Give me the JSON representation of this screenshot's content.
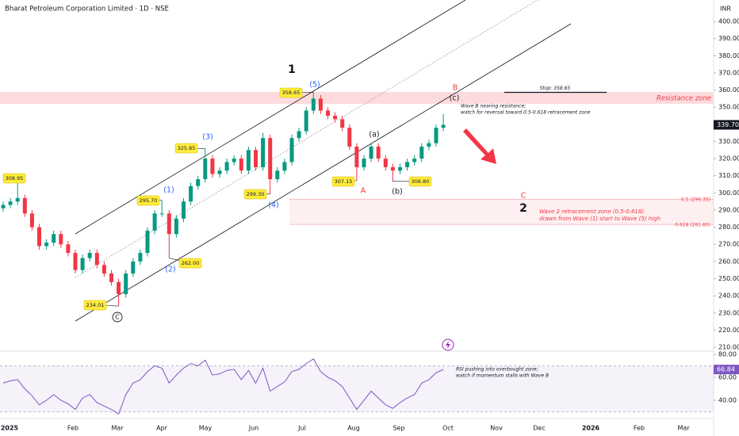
{
  "chart_data": [
    {
      "type": "candlestick",
      "title": "Bharat Petroleum Corporation Limited · 1D · NSE",
      "y_axis_label": "INR",
      "xticks": [
        "2025",
        "Feb",
        "Mar",
        "Apr",
        "May",
        "Jun",
        "Jul",
        "Aug",
        "Sep",
        "Oct",
        "Nov",
        "Dec",
        "2026",
        "Feb",
        "Mar"
      ],
      "open": [
        291,
        293,
        295,
        297,
        288,
        280,
        269,
        271,
        276,
        270,
        265,
        255,
        262,
        265,
        258,
        253,
        248,
        241,
        253,
        260,
        265,
        278,
        288,
        288,
        276,
        285,
        295,
        304,
        308,
        320,
        311,
        313,
        318,
        320,
        313,
        325,
        315,
        332,
        308,
        313,
        318,
        332,
        336,
        348,
        355,
        348,
        345,
        343,
        338,
        327,
        315,
        320,
        327,
        320,
        315,
        313,
        315,
        318,
        320,
        327,
        329,
        338
      ],
      "high": [
        295,
        297,
        308.95,
        299,
        290,
        282,
        273,
        278,
        278,
        272,
        267,
        264,
        267,
        267,
        260,
        255,
        250,
        255,
        262,
        267,
        280,
        290,
        295.7,
        290,
        287,
        297,
        306,
        310,
        325.85,
        322,
        315,
        320,
        322,
        322,
        327,
        327,
        335,
        334,
        315,
        320,
        334,
        338,
        350,
        358.65,
        357,
        350,
        347,
        345,
        340,
        329,
        322,
        329,
        329,
        322,
        317,
        317,
        320,
        322,
        329,
        331,
        340,
        346
      ],
      "low": [
        289,
        291,
        293,
        286,
        278,
        267,
        267,
        269,
        268,
        263,
        253,
        253,
        260,
        256,
        251,
        246,
        234.01,
        239,
        251,
        258,
        263,
        276,
        286,
        262,
        274,
        283,
        293,
        302,
        306,
        309,
        309,
        311,
        316,
        311,
        311,
        313,
        313,
        299.3,
        306,
        311,
        316,
        330,
        334,
        346,
        346,
        343,
        341,
        336,
        325,
        307.15,
        313,
        318,
        318,
        313,
        306.8,
        311,
        313,
        316,
        318,
        325,
        327,
        336
      ],
      "close": [
        293,
        295,
        297,
        288,
        280,
        269,
        271,
        276,
        270,
        265,
        255,
        262,
        265,
        258,
        253,
        248,
        241,
        253,
        260,
        265,
        278,
        288,
        288,
        276,
        285,
        295,
        304,
        308,
        320,
        311,
        313,
        318,
        320,
        313,
        325,
        315,
        332,
        308,
        313,
        318,
        332,
        336,
        348,
        355,
        348,
        345,
        343,
        338,
        327,
        315,
        320,
        327,
        320,
        315,
        313,
        315,
        318,
        320,
        327,
        329,
        338,
        339.7
      ],
      "up_color": "#089981",
      "down_color": "#f23645",
      "ylim": [
        207.7,
        412.5
      ],
      "yticks": [
        {
          "value": 400,
          "label": "400.00"
        },
        {
          "value": 390,
          "label": "390.00"
        },
        {
          "value": 380,
          "label": "380.00"
        },
        {
          "value": 370,
          "label": "370.00"
        },
        {
          "value": 360,
          "label": "360.00"
        },
        {
          "value": 350,
          "label": "350.00"
        },
        {
          "value": 340,
          "label": "340.00"
        },
        {
          "value": 330,
          "label": "330.00"
        },
        {
          "value": 320,
          "label": "320.00"
        },
        {
          "value": 310,
          "label": "310.00"
        },
        {
          "value": 300,
          "label": "300.00"
        },
        {
          "value": 290,
          "label": "290.00"
        },
        {
          "value": 280,
          "label": "280.00"
        },
        {
          "value": 270,
          "label": "270.00"
        },
        {
          "value": 260,
          "label": "260.00"
        },
        {
          "value": 250,
          "label": "250.00"
        },
        {
          "value": 240,
          "label": "240.00"
        },
        {
          "value": 230,
          "label": "230.00"
        },
        {
          "value": 220,
          "label": "220.00"
        },
        {
          "value": 210,
          "label": "210.00"
        }
      ],
      "last_price": {
        "value": 339.7,
        "label": "339.70"
      },
      "callouts": [
        {
          "value": 308.95,
          "label": "308.95"
        },
        {
          "value": 295.7,
          "label": "295.70"
        },
        {
          "value": 325.85,
          "label": "325.85"
        },
        {
          "value": 358.65,
          "label": "358.65"
        },
        {
          "value": 299.3,
          "label": "299.30"
        },
        {
          "value": 262,
          "label": "262.00"
        },
        {
          "value": 234.01,
          "label": "234.01"
        },
        {
          "value": 307.15,
          "label": "307.15"
        },
        {
          "value": 306.8,
          "label": "306.80"
        }
      ],
      "wave_labels": [
        {
          "text": "1",
          "color": "#131722",
          "bold": true
        },
        {
          "text": "(5)",
          "color": "#2962ff"
        },
        {
          "text": "(3)",
          "color": "#2962ff"
        },
        {
          "text": "(1)",
          "color": "#2962ff"
        },
        {
          "text": "(2)",
          "color": "#2962ff"
        },
        {
          "text": "(4)",
          "color": "#2962ff"
        },
        {
          "text": "C",
          "color": "#131722",
          "circled": true
        },
        {
          "text": "(a)",
          "color": "#131722"
        },
        {
          "text": "(b)",
          "color": "#131722"
        },
        {
          "text": "A",
          "color": "#f23645"
        },
        {
          "text": "B",
          "color": "#f23645"
        },
        {
          "text": "(c)",
          "color": "#131722"
        },
        {
          "text": "C",
          "color": "#f23645"
        },
        {
          "text": "2",
          "color": "#131722",
          "bold": true
        }
      ],
      "stop": {
        "value": 358.65,
        "label": "Stop: 358.65"
      },
      "resistance_label": "Resistance zone",
      "fib_levels": [
        {
          "value": 296.35,
          "label": "0.5 (296.35)"
        },
        {
          "value": 281.6,
          "label": "0.618 (281.60)"
        }
      ],
      "note_wave_b": [
        "Wave B nearing resistance;",
        "watch for reversal toward 0.5-0.618 retracement zone"
      ],
      "note_zone": [
        "Wave 2 retracement zone (0.5-0.618)",
        "drawn from Wave (1) start to Wave (5) high"
      ]
    },
    {
      "type": "line",
      "values": [
        55,
        57,
        58,
        50,
        44,
        36,
        40,
        45,
        40,
        37,
        32,
        42,
        45,
        38,
        35,
        32,
        28,
        45,
        55,
        58,
        65,
        70,
        68,
        55,
        62,
        68,
        72,
        70,
        75,
        62,
        63,
        66,
        67,
        58,
        66,
        55,
        68,
        48,
        52,
        56,
        65,
        67,
        72,
        76,
        65,
        60,
        57,
        52,
        42,
        32,
        40,
        48,
        42,
        36,
        33,
        38,
        42,
        45,
        55,
        58,
        64,
        66.84
      ],
      "color": "#7e57c2",
      "ylim": [
        24.1,
        82.8
      ],
      "yticks": [
        {
          "value": 80,
          "label": "80.00"
        },
        {
          "value": 60,
          "label": "60.00"
        },
        {
          "value": 40,
          "label": "40.00"
        }
      ],
      "band": [
        30,
        70
      ],
      "last_value": {
        "value": 66.84,
        "label": "66.84"
      },
      "note": [
        "RSI pushing into overbought zone;",
        "watch if momentum stalls with Wave B"
      ]
    }
  ]
}
